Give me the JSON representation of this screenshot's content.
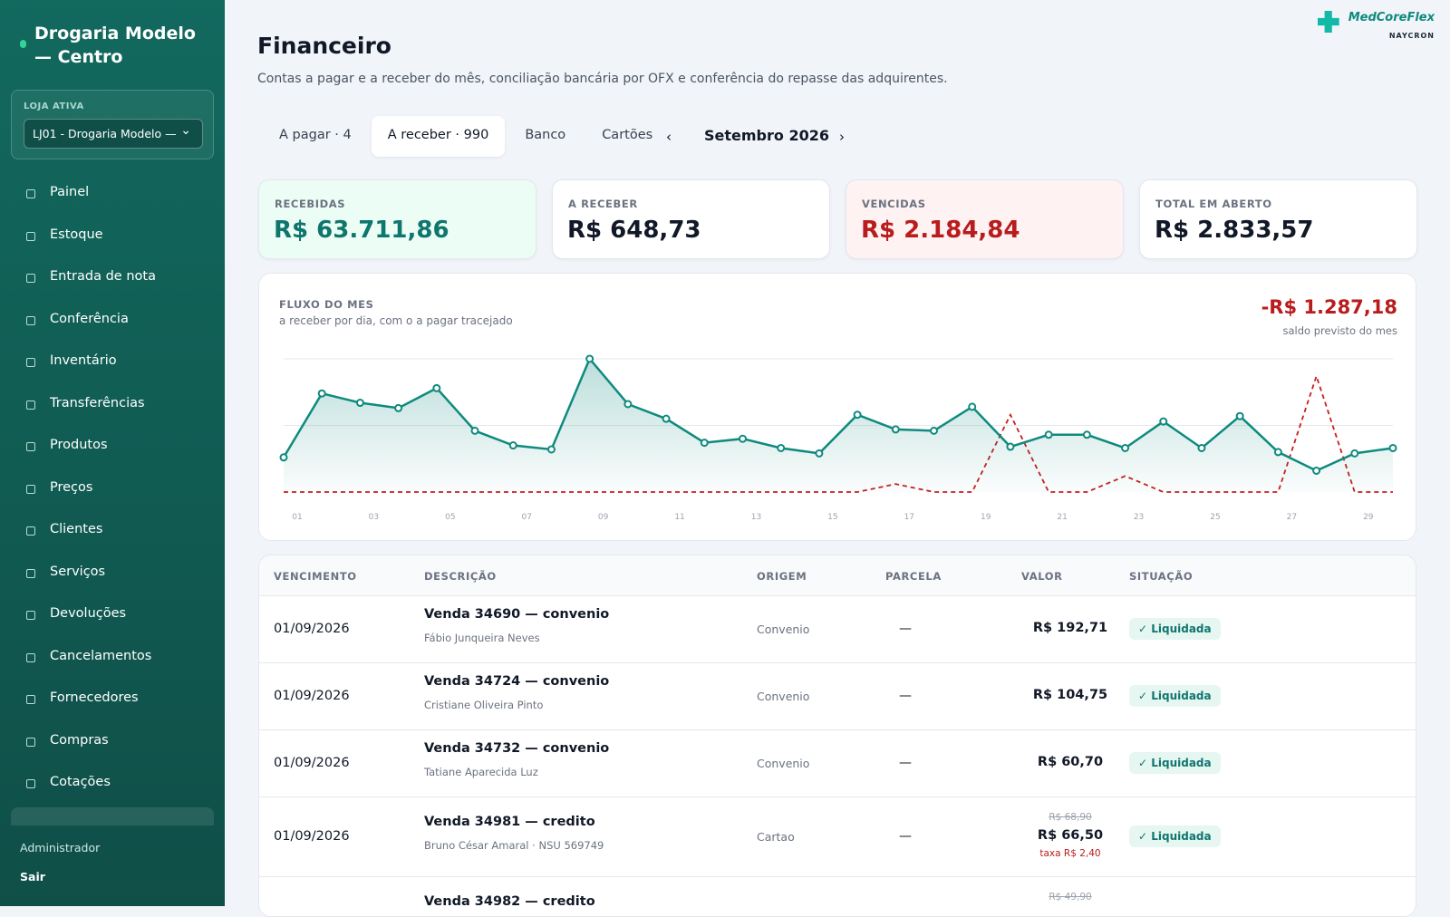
{
  "brand": {
    "name": "Drogaria Modelo — Centro",
    "store_label": "LOJA ATIVA",
    "store": "LJ01 - Drogaria Modelo —"
  },
  "nav": [
    "Painel",
    "Estoque",
    "Entrada de nota",
    "Conferência",
    "Inventário",
    "Transferências",
    "Produtos",
    "Preços",
    "Clientes",
    "Serviços",
    "Devoluções",
    "Cancelamentos",
    "Fornecedores",
    "Compras",
    "Cotações"
  ],
  "footer": {
    "user": "Administrador",
    "logout": "Sair"
  },
  "logo": {
    "name": "MedCoreFlex",
    "sub": "NAYCRON"
  },
  "header": {
    "title": "Financeiro",
    "subtitle": "Contas a pagar e a receber do mês, conciliação bancária por OFX e conferência do repasse das adquirentes."
  },
  "tabs": {
    "items": [
      "A pagar · 4",
      "A receber · 990",
      "Banco",
      "Cartões"
    ],
    "active": 1
  },
  "month": {
    "prev": "‹",
    "label": "Setembro 2026",
    "next": "›"
  },
  "cards": [
    {
      "label": "RECEBIDAS",
      "value": "R$ 63.711,86",
      "color": "#0f766e",
      "bg": "#ecfdf5"
    },
    {
      "label": "A RECEBER",
      "value": "R$ 648,73",
      "color": "#111827",
      "bg": "#ffffff"
    },
    {
      "label": "VENCIDAS",
      "value": "R$ 2.184,84",
      "color": "#b91c1c",
      "bg": "#fef2f2"
    },
    {
      "label": "TOTAL EM ABERTO",
      "value": "R$ 2.833,57",
      "color": "#111827",
      "bg": "#ffffff"
    }
  ],
  "chart_data": {
    "type": "line",
    "title": "FLUXO DO MES",
    "subtitle": "a receber por dia, com o a pagar tracejado",
    "annotation": "-R$ 1.287,18",
    "annotation_label": "saldo previsto do mes",
    "categories": [
      "01",
      null,
      "03",
      null,
      "05",
      null,
      "07",
      null,
      "09",
      null,
      "11",
      null,
      "13",
      null,
      "15",
      null,
      "17",
      null,
      "19",
      null,
      "21",
      null,
      "23",
      null,
      "25",
      null,
      "27",
      null,
      "29",
      null
    ],
    "series": [
      {
        "color": "#0f8a7e",
        "style": "solid",
        "values": [
          26,
          74,
          67,
          63,
          78,
          46,
          35,
          32,
          100,
          66,
          55,
          37,
          40,
          33,
          29,
          58,
          47,
          46,
          64,
          34,
          43,
          43,
          33,
          53,
          33,
          57,
          30,
          16,
          29,
          33
        ]
      },
      {
        "color": "#c81e1e",
        "style": "dashed",
        "values": [
          0,
          0,
          0,
          0,
          0,
          0,
          0,
          0,
          0,
          0,
          0,
          0,
          0,
          0,
          0,
          0,
          6,
          0,
          0,
          58,
          0,
          0,
          12,
          0,
          0,
          0,
          0,
          87,
          0,
          0
        ]
      }
    ],
    "ylim": [
      0,
      100
    ],
    "yticks": [
      0,
      50,
      100
    ],
    "grid": true
  },
  "table": {
    "columns": [
      "VENCIMENTO",
      "DESCRIÇÃO",
      "ORIGEM",
      "PARCELA",
      "VALOR",
      "SITUAÇÃO"
    ],
    "rows": [
      {
        "date": "01/09/2026",
        "title": "Venda 34690 — convenio",
        "subtitle": "Fábio Junqueira Neves",
        "origin": "Convenio",
        "parcela": "—",
        "value": "R$ 192,71",
        "status": "✓ Liquidada"
      },
      {
        "date": "01/09/2026",
        "title": "Venda 34724 — convenio",
        "subtitle": "Cristiane Oliveira Pinto",
        "origin": "Convenio",
        "parcela": "—",
        "value": "R$ 104,75",
        "status": "✓ Liquidada"
      },
      {
        "date": "01/09/2026",
        "title": "Venda 34732 — convenio",
        "subtitle": "Tatiane Aparecida Luz",
        "origin": "Convenio",
        "parcela": "—",
        "value": "R$ 60,70",
        "status": "✓ Liquidada"
      },
      {
        "date": "01/09/2026",
        "title": "Venda 34981 — credito",
        "subtitle": "Bruno César Amaral · NSU 569749",
        "origin": "Cartao",
        "parcela": "—",
        "original": "R$ 68,90",
        "value": "R$ 66,50",
        "fee": "taxa R$ 2,40",
        "status": "✓ Liquidada"
      },
      {
        "title": "Venda 34982 — credito",
        "original": "R$ 49,90"
      }
    ]
  }
}
